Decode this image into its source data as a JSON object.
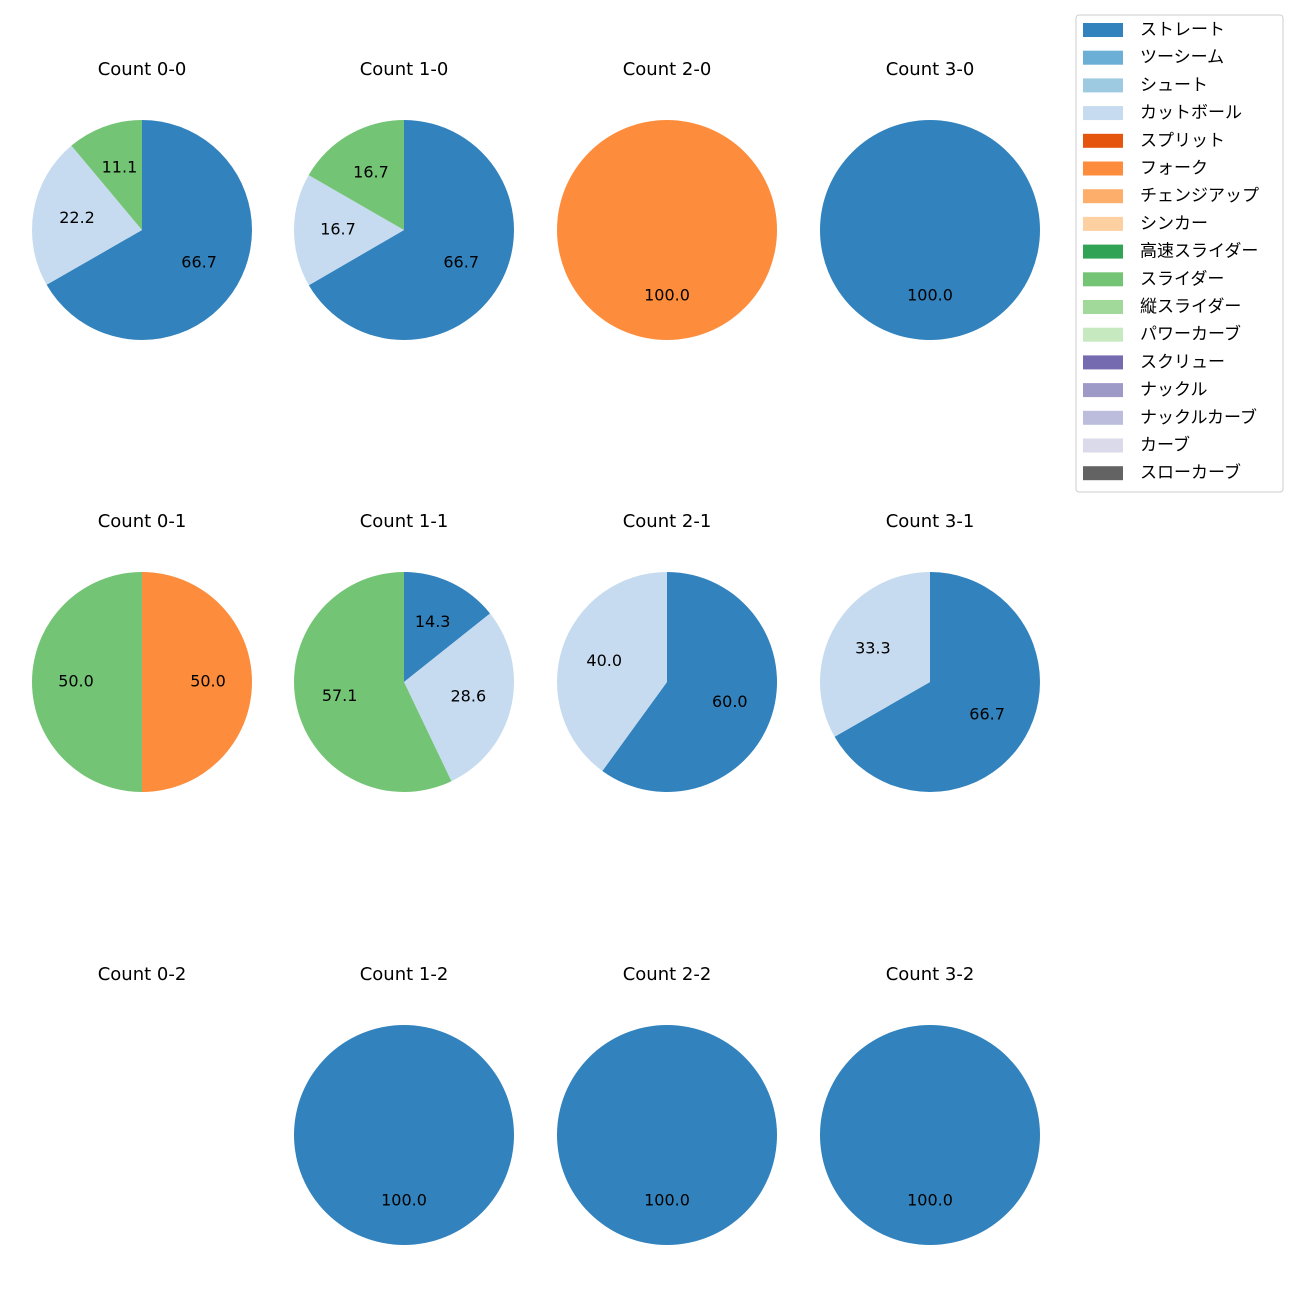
{
  "legend": {
    "labels": [
      "ストレート",
      "ツーシーム",
      "シュート",
      "カットボール",
      "スプリット",
      "フォーク",
      "チェンジアップ",
      "シンカー",
      "高速スライダー",
      "スライダー",
      "縦スライダー",
      "パワーカーブ",
      "スクリュー",
      "ナックル",
      "ナックルカーブ",
      "カーブ",
      "スローカーブ"
    ],
    "colors": [
      "#3182bd",
      "#6baed6",
      "#9ecae1",
      "#c6dbef",
      "#e6550d",
      "#fd8d3c",
      "#fdae6b",
      "#fdd0a2",
      "#31a354",
      "#74c476",
      "#a1d99b",
      "#c7e9c0",
      "#756bb1",
      "#9e9ac8",
      "#bcbddc",
      "#dadaeb",
      "#636363"
    ],
    "corner": "upper right"
  },
  "chart_data": [
    {
      "type": "pie",
      "title": "Count 0-0",
      "categories": [
        "ストレート",
        "カットボール",
        "スライダー"
      ],
      "values": [
        66.7,
        22.2,
        11.1
      ],
      "value_labels": [
        "66.7",
        "22.2",
        "11.1"
      ],
      "colors": [
        "#3182bd",
        "#c6dbef",
        "#74c476"
      ]
    },
    {
      "type": "pie",
      "title": "Count 1-0",
      "categories": [
        "ストレート",
        "カットボール",
        "スライダー"
      ],
      "values": [
        66.7,
        16.7,
        16.7
      ],
      "value_labels": [
        "66.7",
        "16.7",
        "16.7"
      ],
      "colors": [
        "#3182bd",
        "#c6dbef",
        "#74c476"
      ]
    },
    {
      "type": "pie",
      "title": "Count 2-0",
      "categories": [
        "フォーク"
      ],
      "values": [
        100
      ],
      "value_labels": [
        "100.0"
      ],
      "colors": [
        "#fd8d3c"
      ]
    },
    {
      "type": "pie",
      "title": "Count 3-0",
      "categories": [
        "ストレート"
      ],
      "values": [
        100
      ],
      "value_labels": [
        "100.0"
      ],
      "colors": [
        "#3182bd"
      ]
    },
    {
      "type": "pie",
      "title": "Count 0-1",
      "categories": [
        "フォーク",
        "スライダー"
      ],
      "values": [
        50,
        50
      ],
      "value_labels": [
        "50.0",
        "50.0"
      ],
      "colors": [
        "#fd8d3c",
        "#74c476"
      ]
    },
    {
      "type": "pie",
      "title": "Count 1-1",
      "categories": [
        "ストレート",
        "カットボール",
        "スライダー"
      ],
      "values": [
        14.3,
        28.6,
        57.1
      ],
      "value_labels": [
        "14.3",
        "28.6",
        "57.1"
      ],
      "colors": [
        "#3182bd",
        "#c6dbef",
        "#74c476"
      ]
    },
    {
      "type": "pie",
      "title": "Count 2-1",
      "categories": [
        "ストレート",
        "カットボール"
      ],
      "values": [
        60,
        40
      ],
      "value_labels": [
        "60.0",
        "40.0"
      ],
      "colors": [
        "#3182bd",
        "#c6dbef"
      ]
    },
    {
      "type": "pie",
      "title": "Count 3-1",
      "categories": [
        "ストレート",
        "カットボール"
      ],
      "values": [
        66.7,
        33.3
      ],
      "value_labels": [
        "66.7",
        "33.3"
      ],
      "colors": [
        "#3182bd",
        "#c6dbef"
      ]
    },
    {
      "type": "pie",
      "title": "Count 0-2",
      "categories": [],
      "values": [],
      "value_labels": [],
      "colors": []
    },
    {
      "type": "pie",
      "title": "Count 1-2",
      "categories": [
        "ストレート"
      ],
      "values": [
        100
      ],
      "value_labels": [
        "100.0"
      ],
      "colors": [
        "#3182bd"
      ]
    },
    {
      "type": "pie",
      "title": "Count 2-2",
      "categories": [
        "ストレート"
      ],
      "values": [
        100
      ],
      "value_labels": [
        "100.0"
      ],
      "colors": [
        "#3182bd"
      ]
    },
    {
      "type": "pie",
      "title": "Count 3-2",
      "categories": [
        "ストレート"
      ],
      "values": [
        100
      ],
      "value_labels": [
        "100.0"
      ],
      "colors": [
        "#3182bd"
      ]
    }
  ]
}
